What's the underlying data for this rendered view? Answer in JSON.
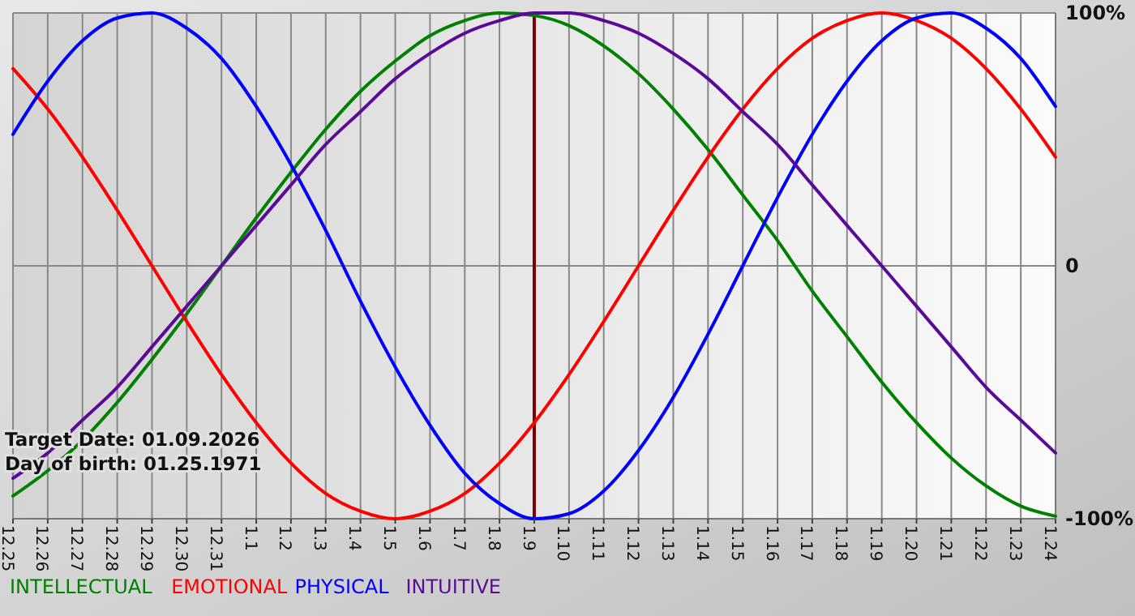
{
  "chart_data": {
    "type": "line",
    "categories": [
      "12.25",
      "12.26",
      "12.27",
      "12.28",
      "12.29",
      "12.30",
      "12.31",
      "1.1",
      "1.2",
      "1.3",
      "1.4",
      "1.5",
      "1.6",
      "1.7",
      "1.8",
      "1.9",
      "1.10",
      "1.11",
      "1.12",
      "1.13",
      "1.14",
      "1.15",
      "1.16",
      "1.17",
      "1.18",
      "1.19",
      "1.20",
      "1.21",
      "1.22",
      "1.23",
      "1.24"
    ],
    "series": [
      {
        "name": "INTELLECTUAL",
        "color": "#008000",
        "values": [
          -91,
          -81,
          -69,
          -54,
          -37,
          -19,
          0,
          19,
          37,
          54,
          69,
          81,
          91,
          97,
          100,
          99,
          95,
          87,
          76,
          62,
          46,
          28,
          10,
          -10,
          -28,
          -46,
          -62,
          -76,
          -87,
          -95,
          -99
        ]
      },
      {
        "name": "EMOTIONAL",
        "color": "#ff0000",
        "values": [
          78,
          62,
          43,
          22,
          0,
          -22,
          -43,
          -62,
          -78,
          -90,
          -97,
          -100,
          -97,
          -90,
          -78,
          -62,
          -43,
          -22,
          0,
          22,
          43,
          62,
          78,
          90,
          97,
          100,
          97,
          90,
          78,
          62,
          43
        ]
      },
      {
        "name": "PHYSICAL",
        "color": "#0000ff",
        "values": [
          52,
          73,
          89,
          98,
          100,
          94,
          82,
          63,
          40,
          14,
          -14,
          -40,
          -63,
          -82,
          -94,
          -100,
          -98,
          -89,
          -73,
          -52,
          -27,
          0,
          27,
          52,
          73,
          89,
          98,
          100,
          94,
          82,
          63
        ]
      },
      {
        "name": "INTUITIVE",
        "color": "#5a0a96",
        "values": [
          -84,
          -74,
          -61,
          -48,
          -32,
          -16,
          0,
          16,
          32,
          48,
          61,
          74,
          84,
          92,
          97,
          100,
          100,
          97,
          92,
          84,
          74,
          61,
          48,
          32,
          16,
          0,
          -16,
          -32,
          -48,
          -61,
          -74
        ]
      }
    ],
    "ylim": [
      -100,
      100
    ],
    "yticks": [
      {
        "value": 100,
        "label": "100%"
      },
      0,
      {
        "value": -100,
        "label": "-100%"
      }
    ],
    "grid": true,
    "legend": "bottom left",
    "line_style": "solid",
    "ref_lines": [
      {
        "axis": "x",
        "value": "1.9",
        "color": "#800000"
      }
    ],
    "annotations": [
      "Target Date: 01.09.2026",
      "Day of birth: 01.25.1971"
    ]
  }
}
